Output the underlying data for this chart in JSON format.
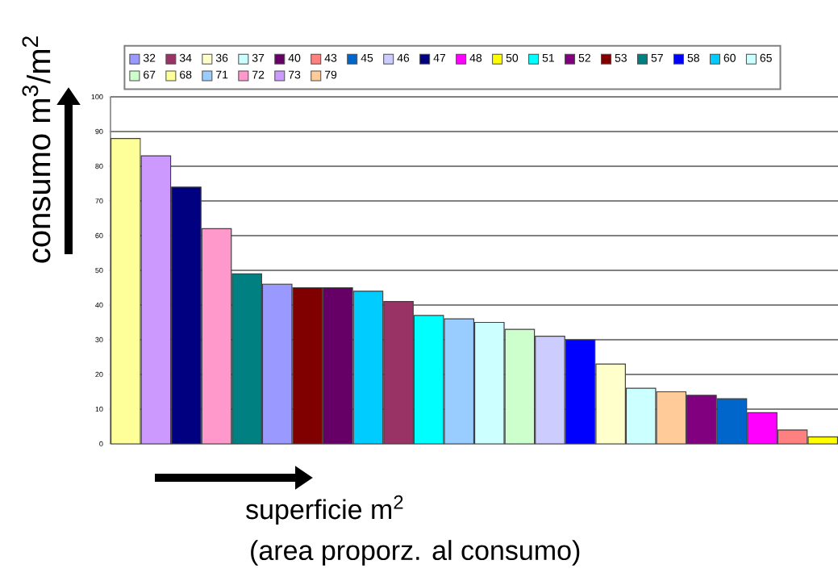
{
  "chart_data": [
    {
      "type": "bar",
      "ylabel": "consumo m$^{3}$/m$^{2}$",
      "xlabel": "superficie m$^{2}$",
      "annotations": [
        "(area proporz. al consumo)"
      ],
      "categories": [
        null,
        null,
        null,
        null,
        null,
        null,
        null,
        null,
        null,
        null,
        null,
        null,
        null,
        null,
        null,
        null,
        null,
        null,
        null,
        null,
        null,
        null,
        null,
        null
      ],
      "series": [
        {
          "name": "32",
          "color": "#9999ff",
          "values": [
            null,
            null,
            null,
            null,
            null,
            46,
            null,
            null,
            null,
            null,
            null,
            null,
            null,
            null,
            null,
            null,
            null,
            null,
            null,
            null,
            null,
            null,
            null,
            null
          ]
        },
        {
          "name": "34",
          "color": "#993366",
          "values": [
            null,
            null,
            null,
            null,
            null,
            null,
            null,
            null,
            null,
            41,
            null,
            null,
            null,
            null,
            null,
            null,
            null,
            null,
            null,
            null,
            null,
            null,
            null,
            null
          ]
        },
        {
          "name": "36",
          "color": "#ffffcc",
          "values": [
            null,
            null,
            null,
            null,
            null,
            null,
            null,
            null,
            null,
            null,
            null,
            null,
            null,
            null,
            null,
            null,
            23,
            null,
            null,
            null,
            null,
            null,
            null,
            null
          ]
        },
        {
          "name": "37",
          "color": "#ccffff",
          "values": [
            null,
            null,
            null,
            null,
            null,
            null,
            null,
            null,
            null,
            null,
            null,
            null,
            35,
            null,
            null,
            null,
            null,
            null,
            null,
            null,
            null,
            null,
            null,
            null
          ]
        },
        {
          "name": "40",
          "color": "#660066",
          "values": [
            null,
            null,
            null,
            null,
            null,
            null,
            null,
            45,
            null,
            null,
            null,
            null,
            null,
            null,
            null,
            null,
            null,
            null,
            null,
            null,
            null,
            null,
            null,
            null
          ]
        },
        {
          "name": "43",
          "color": "#ff8080",
          "values": [
            null,
            null,
            null,
            null,
            null,
            null,
            null,
            null,
            null,
            null,
            null,
            null,
            null,
            null,
            null,
            null,
            null,
            null,
            null,
            null,
            null,
            null,
            4,
            null
          ]
        },
        {
          "name": "45",
          "color": "#0066cc",
          "values": [
            null,
            null,
            null,
            null,
            null,
            null,
            null,
            null,
            null,
            null,
            null,
            null,
            null,
            null,
            null,
            null,
            null,
            null,
            null,
            null,
            13,
            null,
            null,
            null
          ]
        },
        {
          "name": "46",
          "color": "#ccccff",
          "values": [
            null,
            null,
            null,
            null,
            null,
            null,
            null,
            null,
            null,
            null,
            null,
            null,
            null,
            null,
            31,
            null,
            null,
            null,
            null,
            null,
            null,
            null,
            null,
            null
          ]
        },
        {
          "name": "47",
          "color": "#000080",
          "values": [
            null,
            null,
            74,
            null,
            null,
            null,
            null,
            null,
            null,
            null,
            null,
            null,
            null,
            null,
            null,
            null,
            null,
            null,
            null,
            null,
            null,
            null,
            null,
            null
          ]
        },
        {
          "name": "48",
          "color": "#ff00ff",
          "values": [
            null,
            null,
            null,
            null,
            null,
            null,
            null,
            null,
            null,
            null,
            null,
            null,
            null,
            null,
            null,
            null,
            null,
            null,
            null,
            null,
            null,
            9,
            null,
            null
          ]
        },
        {
          "name": "50",
          "color": "#ffff00",
          "values": [
            null,
            null,
            null,
            null,
            null,
            null,
            null,
            null,
            null,
            null,
            null,
            null,
            null,
            null,
            null,
            null,
            null,
            null,
            null,
            null,
            null,
            null,
            null,
            2
          ]
        },
        {
          "name": "51",
          "color": "#00ffff",
          "values": [
            null,
            null,
            null,
            null,
            null,
            null,
            null,
            null,
            null,
            null,
            37,
            null,
            null,
            null,
            null,
            null,
            null,
            null,
            null,
            null,
            null,
            null,
            null,
            null
          ]
        },
        {
          "name": "52",
          "color": "#800080",
          "values": [
            null,
            null,
            null,
            null,
            null,
            null,
            null,
            null,
            null,
            null,
            null,
            null,
            null,
            null,
            null,
            null,
            null,
            null,
            null,
            14,
            null,
            null,
            null,
            null
          ]
        },
        {
          "name": "53",
          "color": "#800000",
          "values": [
            null,
            null,
            null,
            null,
            null,
            null,
            45,
            null,
            null,
            null,
            null,
            null,
            null,
            null,
            null,
            null,
            null,
            null,
            null,
            null,
            null,
            null,
            null,
            null
          ]
        },
        {
          "name": "57",
          "color": "#008080",
          "values": [
            null,
            null,
            null,
            null,
            49,
            null,
            null,
            null,
            null,
            null,
            null,
            null,
            null,
            null,
            null,
            null,
            null,
            null,
            null,
            null,
            null,
            null,
            null,
            null
          ]
        },
        {
          "name": "58",
          "color": "#0000ff",
          "values": [
            null,
            null,
            null,
            null,
            null,
            null,
            null,
            null,
            null,
            null,
            null,
            null,
            null,
            null,
            null,
            30,
            null,
            null,
            null,
            null,
            null,
            null,
            null,
            null
          ]
        },
        {
          "name": "60",
          "color": "#00ccff",
          "values": [
            null,
            null,
            null,
            null,
            null,
            null,
            null,
            null,
            44,
            null,
            null,
            null,
            null,
            null,
            null,
            null,
            null,
            null,
            null,
            null,
            null,
            null,
            null,
            null
          ]
        },
        {
          "name": "65",
          "color": "#ccffff",
          "values": [
            null,
            null,
            null,
            null,
            null,
            null,
            null,
            null,
            null,
            null,
            null,
            null,
            null,
            null,
            null,
            null,
            null,
            16,
            null,
            null,
            null,
            null,
            null,
            null
          ]
        },
        {
          "name": "67",
          "color": "#ccffcc",
          "values": [
            null,
            null,
            null,
            null,
            null,
            null,
            null,
            null,
            null,
            null,
            null,
            null,
            null,
            33,
            null,
            null,
            null,
            null,
            null,
            null,
            null,
            null,
            null,
            null
          ]
        },
        {
          "name": "68",
          "color": "#ffff99",
          "values": [
            88,
            null,
            null,
            null,
            null,
            null,
            null,
            null,
            null,
            null,
            null,
            null,
            null,
            null,
            null,
            null,
            null,
            null,
            null,
            null,
            null,
            null,
            null,
            null
          ]
        },
        {
          "name": "71",
          "color": "#99ccff",
          "values": [
            null,
            null,
            null,
            null,
            null,
            null,
            null,
            null,
            null,
            null,
            null,
            36,
            null,
            null,
            null,
            null,
            null,
            null,
            null,
            null,
            null,
            null,
            null,
            null
          ]
        },
        {
          "name": "72",
          "color": "#ff99cc",
          "values": [
            null,
            null,
            null,
            62,
            null,
            null,
            null,
            null,
            null,
            null,
            null,
            null,
            null,
            null,
            null,
            null,
            null,
            null,
            null,
            null,
            null,
            null,
            null,
            null
          ]
        },
        {
          "name": "73",
          "color": "#cc99ff",
          "values": [
            null,
            83,
            null,
            null,
            null,
            null,
            null,
            null,
            null,
            null,
            null,
            null,
            null,
            null,
            null,
            null,
            null,
            null,
            null,
            null,
            null,
            null,
            null,
            null
          ]
        },
        {
          "name": "79",
          "color": "#ffcc99",
          "values": [
            null,
            null,
            null,
            null,
            null,
            null,
            null,
            null,
            null,
            null,
            null,
            null,
            null,
            null,
            null,
            null,
            null,
            null,
            15,
            null,
            null,
            null,
            null,
            null
          ]
        }
      ],
      "ylim": [
        0,
        100
      ],
      "yticks": [
        0,
        10,
        20,
        30,
        40,
        50,
        60,
        70,
        80,
        90,
        100
      ],
      "grid": "y",
      "legend": "top"
    }
  ]
}
